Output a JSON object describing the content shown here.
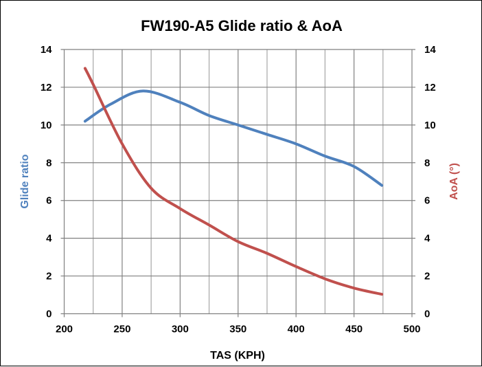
{
  "chart_data": {
    "type": "line",
    "title": "FW190-A5 Glide ratio & AoA",
    "xlabel": "TAS (KPH)",
    "ylabel": "Glide ratio",
    "y2label": "AoA (°)",
    "xlim": [
      200,
      500
    ],
    "ylim": [
      0,
      14
    ],
    "y2lim": [
      0,
      14
    ],
    "xticks": [
      200,
      250,
      300,
      350,
      400,
      450,
      500
    ],
    "yticks": [
      0,
      2,
      4,
      6,
      8,
      10,
      12,
      14
    ],
    "y2ticks": [
      0,
      2,
      4,
      6,
      8,
      10,
      12,
      14
    ],
    "grid": true,
    "legend": "none",
    "series": [
      {
        "axis": "left",
        "color": "#4F81BD",
        "x": [
          218,
          240,
          268,
          300,
          325,
          350,
          375,
          400,
          425,
          450,
          474
        ],
        "y": [
          10.2,
          11.1,
          11.8,
          11.2,
          10.5,
          10.0,
          9.5,
          9.0,
          8.35,
          7.8,
          6.8
        ]
      },
      {
        "axis": "right",
        "color": "#C0504D",
        "x": [
          218,
          225,
          250,
          275,
          300,
          325,
          350,
          375,
          400,
          425,
          450,
          474
        ],
        "y": [
          13.0,
          12.15,
          9.0,
          6.65,
          5.57,
          4.7,
          3.82,
          3.2,
          2.5,
          1.85,
          1.36,
          1.03
        ]
      }
    ]
  }
}
